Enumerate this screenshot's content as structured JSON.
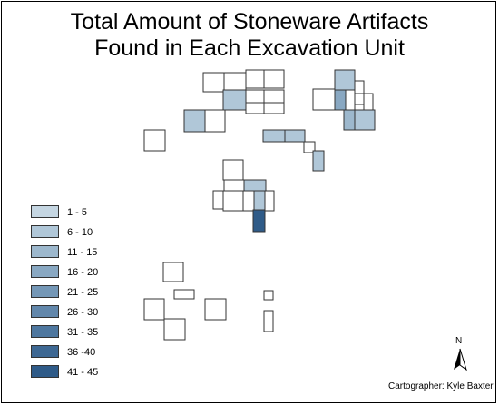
{
  "title_line1": "Total Amount of Stoneware Artifacts",
  "title_line2": "Found in Each Excavation Unit",
  "legend": [
    {
      "label": "1 - 5",
      "color": "#c5d6e2"
    },
    {
      "label": "6 - 10",
      "color": "#b0c7d8"
    },
    {
      "label": "11 - 15",
      "color": "#9db8cd"
    },
    {
      "label": "16 - 20",
      "color": "#89a8c2"
    },
    {
      "label": "21 - 25",
      "color": "#7497b6"
    },
    {
      "label": "26 - 30",
      "color": "#6287ab"
    },
    {
      "label": "31 - 35",
      "color": "#4e779f"
    },
    {
      "label": "36 -40",
      "color": "#3e6893"
    },
    {
      "label": "41 - 45",
      "color": "#2f5b88"
    }
  ],
  "north_arrow": {
    "label": "N",
    "icon": "north-arrow-icon"
  },
  "credit": "Cartographer: Kyle Baxter",
  "colors": {
    "border": "#000000",
    "unit_outline": "#333333",
    "empty_unit": "#ffffff"
  }
}
